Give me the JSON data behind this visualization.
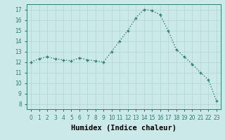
{
  "x": [
    0,
    1,
    2,
    3,
    4,
    5,
    6,
    7,
    8,
    9,
    10,
    11,
    12,
    13,
    14,
    15,
    16,
    17,
    18,
    19,
    20,
    21,
    22,
    23
  ],
  "y": [
    12.0,
    12.3,
    12.5,
    12.3,
    12.2,
    12.1,
    12.4,
    12.2,
    12.1,
    12.0,
    13.0,
    14.0,
    15.0,
    16.2,
    17.0,
    16.9,
    16.5,
    15.0,
    13.2,
    12.5,
    11.8,
    11.0,
    10.3,
    8.3
  ],
  "xlabel": "Humidex (Indice chaleur)",
  "bg_color": "#cce9e9",
  "line_color": "#2d7d6e",
  "grid_color": "#b0d4d4",
  "ylim": [
    7.5,
    17.5
  ],
  "xlim": [
    -0.5,
    23.5
  ],
  "yticks": [
    8,
    9,
    10,
    11,
    12,
    13,
    14,
    15,
    16,
    17
  ],
  "xticks": [
    0,
    1,
    2,
    3,
    4,
    5,
    6,
    7,
    8,
    9,
    10,
    11,
    12,
    13,
    14,
    15,
    16,
    17,
    18,
    19,
    20,
    21,
    22,
    23
  ],
  "xtick_labels": [
    "0",
    "1",
    "2",
    "3",
    "4",
    "5",
    "6",
    "7",
    "8",
    "9",
    "10",
    "11",
    "12",
    "13",
    "14",
    "15",
    "16",
    "17",
    "18",
    "19",
    "20",
    "21",
    "22",
    "23"
  ],
  "tick_fontsize": 5.5,
  "xlabel_fontsize": 7.5,
  "line_width": 1.0
}
